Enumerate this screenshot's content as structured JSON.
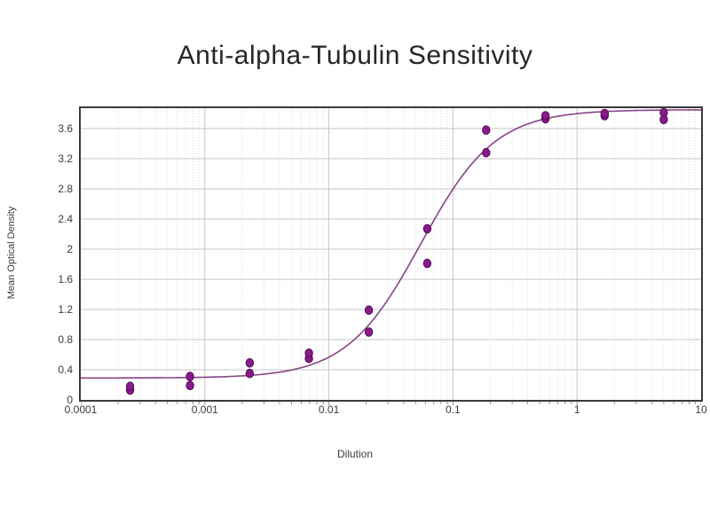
{
  "page": {
    "background": "#ffffff"
  },
  "chart_data": {
    "type": "scatter",
    "title": "Anti-alpha-Tubulin Sensitivity",
    "xlabel": "Dilution",
    "ylabel": "Mean Optical Density",
    "x_scale": "log",
    "xlim": [
      0.0001,
      10
    ],
    "ylim": [
      0,
      3.87
    ],
    "grid": {
      "horizontal": "solid",
      "vertical_major": "solid",
      "vertical_minor": "dotted"
    },
    "legend": "none",
    "x_ticks": [
      {
        "value": 0.0001,
        "label": "0.0001"
      },
      {
        "value": 0.001,
        "label": "0.001"
      },
      {
        "value": 0.01,
        "label": "0.01"
      },
      {
        "value": 0.1,
        "label": "0.1"
      },
      {
        "value": 1,
        "label": "1"
      },
      {
        "value": 10,
        "label": "10"
      }
    ],
    "y_ticks": [
      {
        "value": 0,
        "label": "0"
      },
      {
        "value": 0.4,
        "label": "0.4"
      },
      {
        "value": 0.8,
        "label": "0.8"
      },
      {
        "value": 1.2,
        "label": "1.2"
      },
      {
        "value": 1.6,
        "label": "1.6"
      },
      {
        "value": 2,
        "label": "2"
      },
      {
        "value": 2.4,
        "label": "2.4"
      },
      {
        "value": 2.8,
        "label": "2.8"
      },
      {
        "value": 3.2,
        "label": "3.2"
      },
      {
        "value": 3.6,
        "label": "3.6"
      }
    ],
    "points": [
      [
        0.00025,
        0.13
      ],
      [
        0.00025,
        0.18
      ],
      [
        0.00076,
        0.19
      ],
      [
        0.00076,
        0.31
      ],
      [
        0.0023,
        0.35
      ],
      [
        0.0023,
        0.49
      ],
      [
        0.0069,
        0.55
      ],
      [
        0.0069,
        0.62
      ],
      [
        0.021,
        0.9
      ],
      [
        0.021,
        1.19
      ],
      [
        0.062,
        1.81
      ],
      [
        0.062,
        2.27
      ],
      [
        0.185,
        3.28
      ],
      [
        0.185,
        3.58
      ],
      [
        0.556,
        3.73
      ],
      [
        0.556,
        3.77
      ],
      [
        1.67,
        3.77
      ],
      [
        1.67,
        3.8
      ],
      [
        5.0,
        3.72
      ],
      [
        5.0,
        3.81
      ]
    ],
    "fit_curve": {
      "model": "4PL",
      "bottom": 0.29,
      "top": 3.85,
      "ec50": 0.055,
      "hill": 1.45
    },
    "colors": {
      "point_fill": "#8a1a8c",
      "point_stroke": "#4f0d55",
      "curve": "#7a2f7a",
      "grid_major": "#c6c6c6",
      "grid_minor": "#dedede",
      "frame": "#3a3a3a",
      "tick": "#909090",
      "text": "#3a3a3a",
      "title_text": "#262626"
    }
  }
}
